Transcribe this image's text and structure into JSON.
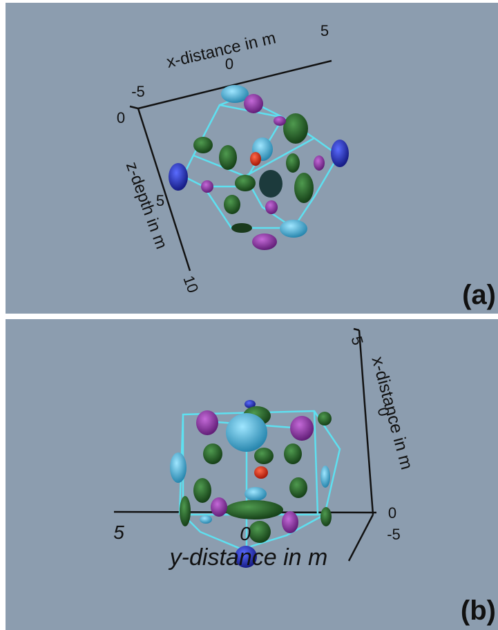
{
  "panels": [
    {
      "label": "(a)",
      "axes": [
        {
          "title": "x-distance in m",
          "ticks": [
            "-5",
            "0",
            "5"
          ]
        },
        {
          "title": "z-depth in m",
          "ticks": [
            "0",
            "5",
            "10"
          ]
        }
      ]
    },
    {
      "label": "(b)",
      "axes": [
        {
          "title": "x-distance in m",
          "ticks": [
            "5",
            "0"
          ]
        },
        {
          "title": "y-distance in m",
          "ticks": [
            "5",
            "0"
          ]
        },
        {
          "ticks": [
            "0",
            "-5"
          ]
        }
      ]
    }
  ]
}
